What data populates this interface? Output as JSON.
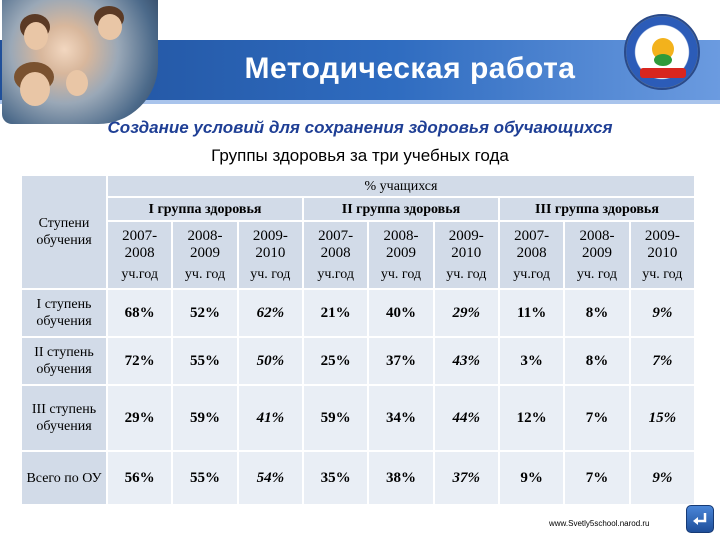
{
  "header": {
    "title": "Методическая работа",
    "subtitle": "Создание условий для сохранения  здоровья обучающихся",
    "subtitle2": "Группы здоровья за три учебных года"
  },
  "table": {
    "percent_header": "% учащихся",
    "row_header": "Ступени обучения",
    "groups": [
      "I группа здоровья",
      "II группа здоровья",
      "III группа здоровья"
    ],
    "years": [
      {
        "range": "2007-2008",
        "unit": "уч.год"
      },
      {
        "range": "2008-2009",
        "unit": "уч. год"
      },
      {
        "range": "2009-2010",
        "unit": "уч. год"
      }
    ],
    "rows": [
      {
        "label": "I ступень обучения",
        "values": [
          "68%",
          "52%",
          "62%",
          "21%",
          "40%",
          "29%",
          "11%",
          "8%",
          "9%"
        ]
      },
      {
        "label": "II ступень обучения",
        "values": [
          "72%",
          "55%",
          "50%",
          "25%",
          "37%",
          "43%",
          "3%",
          "8%",
          "7%"
        ]
      },
      {
        "label": "III ступень обучения",
        "values": [
          "29%",
          "59%",
          "41%",
          "59%",
          "34%",
          "44%",
          "12%",
          "7%",
          "15%"
        ]
      },
      {
        "label": "Всего по ОУ",
        "values": [
          "56%",
          "55%",
          "54%",
          "35%",
          "38%",
          "37%",
          "9%",
          "7%",
          "9%"
        ]
      }
    ]
  },
  "footer": {
    "url": "www.Svetly5school.narod.ru"
  },
  "icons": {
    "back": "back-arrow-icon",
    "emblem": "school-emblem-icon"
  }
}
